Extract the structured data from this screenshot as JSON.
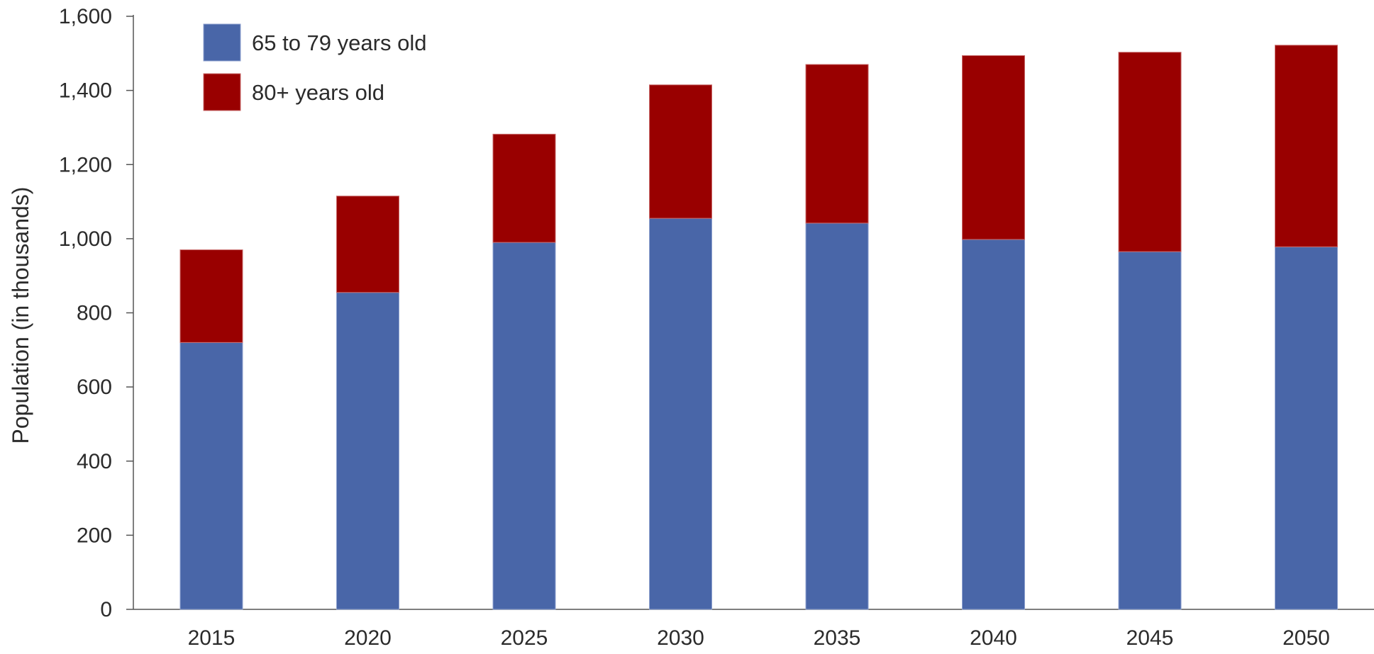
{
  "chart_data": {
    "type": "bar",
    "stacked": true,
    "categories": [
      "2015",
      "2020",
      "2025",
      "2030",
      "2035",
      "2040",
      "2045",
      "2050"
    ],
    "series": [
      {
        "name": "65 to 79 years old",
        "color": "#4966a8",
        "values": [
          720,
          855,
          990,
          1055,
          1042,
          998,
          965,
          978
        ]
      },
      {
        "name": "80+ years old",
        "color": "#990000",
        "values": [
          250,
          260,
          292,
          360,
          428,
          496,
          538,
          544
        ]
      }
    ],
    "title": "",
    "xlabel": "",
    "ylabel": "Population (in thousands)",
    "ylim": [
      0,
      1600
    ],
    "yticks": [
      "0",
      "200",
      "400",
      "600",
      "800",
      "1,000",
      "1,200",
      "1,400",
      "1,600"
    ],
    "ytick_values": [
      0,
      200,
      400,
      600,
      800,
      1000,
      1200,
      1400,
      1600
    ],
    "grid": false,
    "legend_position": "top-left"
  }
}
